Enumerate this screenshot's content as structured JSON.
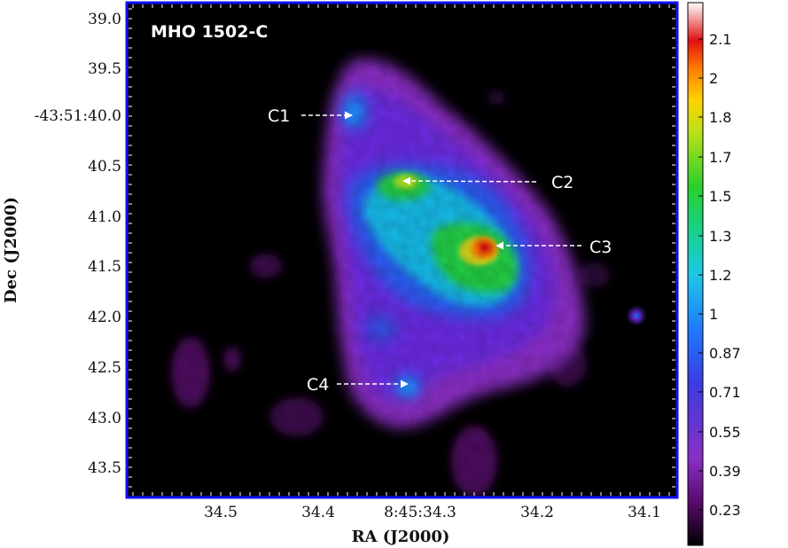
{
  "figure": {
    "title": "MHO 1502-C",
    "x_axis_label": "RA (J2000)",
    "y_axis_label": "Dec (J2000)",
    "x_ticks": [
      "34.5",
      "34.4",
      "8:45:34.3",
      "34.2",
      "34.1"
    ],
    "y_ticks": [
      "39.0",
      "39.5",
      "-43:51:40.0",
      "40.5",
      "41.0",
      "41.5",
      "42.0",
      "42.5",
      "43.0",
      "43.5"
    ],
    "colorbar_ticks": [
      "2.1",
      "2",
      "1.8",
      "1.7",
      "1.5",
      "1.3",
      "1.2",
      "1",
      "0.87",
      "0.71",
      "0.55",
      "0.39",
      "0.23"
    ],
    "colormap": [
      "#000000",
      "#5a0a6e",
      "#8a2fc4",
      "#3a3ce0",
      "#1e7cff",
      "#1ec8e6",
      "#18d08a",
      "#28d02a",
      "#b8e01a",
      "#ffd400",
      "#ff7a00",
      "#e01010",
      "#ffffff"
    ],
    "frame_color": "#1010ff",
    "sources": [
      {
        "label": "C1"
      },
      {
        "label": "C2"
      },
      {
        "label": "C3"
      },
      {
        "label": "C4"
      }
    ]
  }
}
